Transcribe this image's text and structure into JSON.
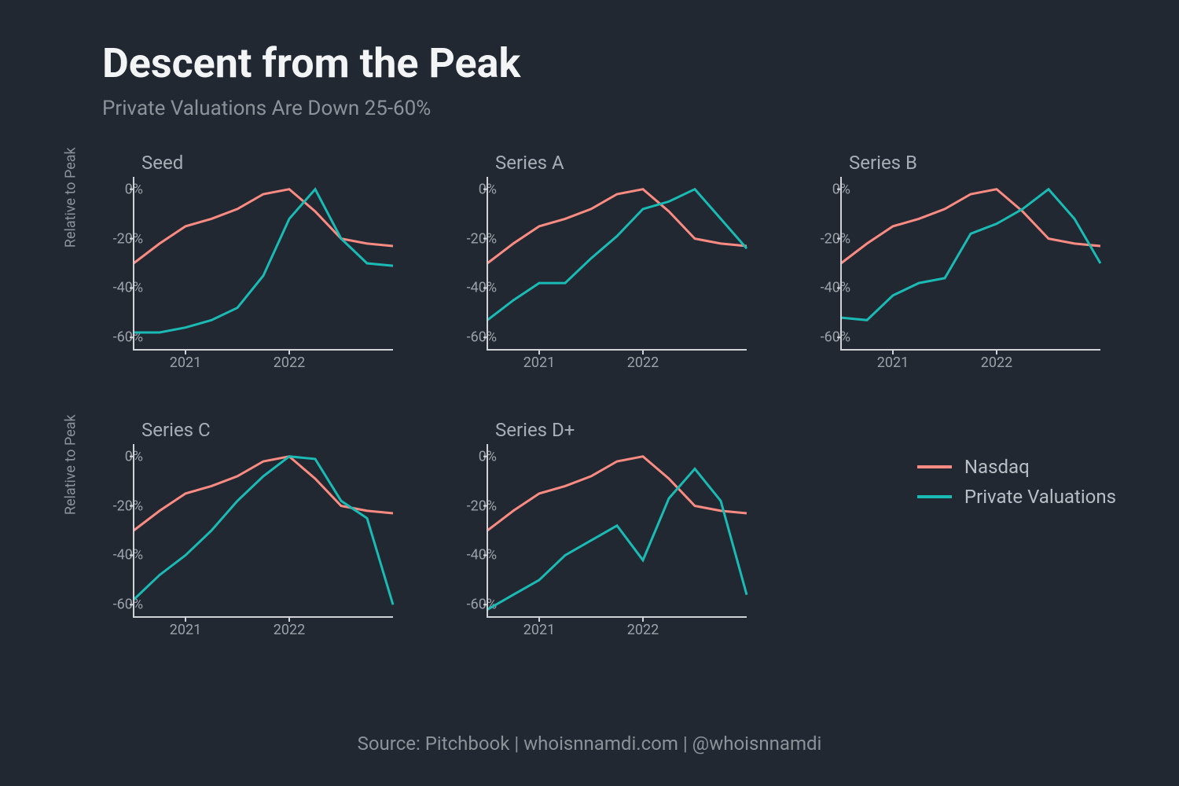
{
  "title": "Descent from the Peak",
  "subtitle": "Private Valuations Are Down 25-60%",
  "ylabel": "Relative to Peak",
  "source": "Source: Pitchbook | whoisnnamdi.com | @whoisnnamdi",
  "colors": {
    "background": "#222831",
    "title": "#f2f4f6",
    "subtitle": "#8b929a",
    "axis": "#d0d4d9",
    "tick_label": "#9ba1a8",
    "nasdaq": "#f98b82",
    "private": "#1abab5"
  },
  "legend": {
    "items": [
      {
        "label": "Nasdaq",
        "color": "#f98b82"
      },
      {
        "label": "Private Valuations",
        "color": "#1abab5"
      }
    ]
  },
  "axes": {
    "ylim": [
      -65,
      5
    ],
    "yticks": [
      0,
      -20,
      -40,
      -60
    ],
    "ytick_labels": [
      "0%",
      "-20%",
      "-40%",
      "-60%"
    ],
    "xlim": [
      0,
      10
    ],
    "xticks": [
      2,
      6
    ],
    "xtick_labels": [
      "2021",
      "2022"
    ]
  },
  "line_width": 3,
  "title_fontsize": 52,
  "subtitle_fontsize": 26,
  "panel_title_fontsize": 24,
  "tick_fontsize": 18,
  "panels": [
    {
      "title": "Seed",
      "show_ylabel": true,
      "nasdaq": [
        -30,
        -22,
        -15,
        -12,
        -8,
        -2,
        0,
        -9,
        -20,
        -22,
        -23
      ],
      "private": [
        -58,
        -58,
        -56,
        -53,
        -48,
        -35,
        -12,
        0,
        -20,
        -30,
        -31
      ]
    },
    {
      "title": "Series A",
      "show_ylabel": false,
      "nasdaq": [
        -30,
        -22,
        -15,
        -12,
        -8,
        -2,
        0,
        -9,
        -20,
        -22,
        -23
      ],
      "private": [
        -53,
        -45,
        -38,
        -38,
        -28,
        -19,
        -8,
        -5,
        0,
        -12,
        -24
      ]
    },
    {
      "title": "Series B",
      "show_ylabel": false,
      "nasdaq": [
        -30,
        -22,
        -15,
        -12,
        -8,
        -2,
        0,
        -9,
        -20,
        -22,
        -23
      ],
      "private": [
        -52,
        -53,
        -43,
        -38,
        -36,
        -18,
        -14,
        -8,
        0,
        -12,
        -30
      ]
    },
    {
      "title": "Series C",
      "show_ylabel": true,
      "nasdaq": [
        -30,
        -22,
        -15,
        -12,
        -8,
        -2,
        0,
        -9,
        -20,
        -22,
        -23
      ],
      "private": [
        -58,
        -48,
        -40,
        -30,
        -18,
        -8,
        0,
        -1,
        -18,
        -25,
        -60
      ]
    },
    {
      "title": "Series D+",
      "show_ylabel": false,
      "nasdaq": [
        -30,
        -22,
        -15,
        -12,
        -8,
        -2,
        0,
        -9,
        -20,
        -22,
        -23
      ],
      "private": [
        -62,
        -56,
        -50,
        -40,
        -34,
        -28,
        -42,
        -17,
        -5,
        -18,
        -56
      ]
    }
  ]
}
